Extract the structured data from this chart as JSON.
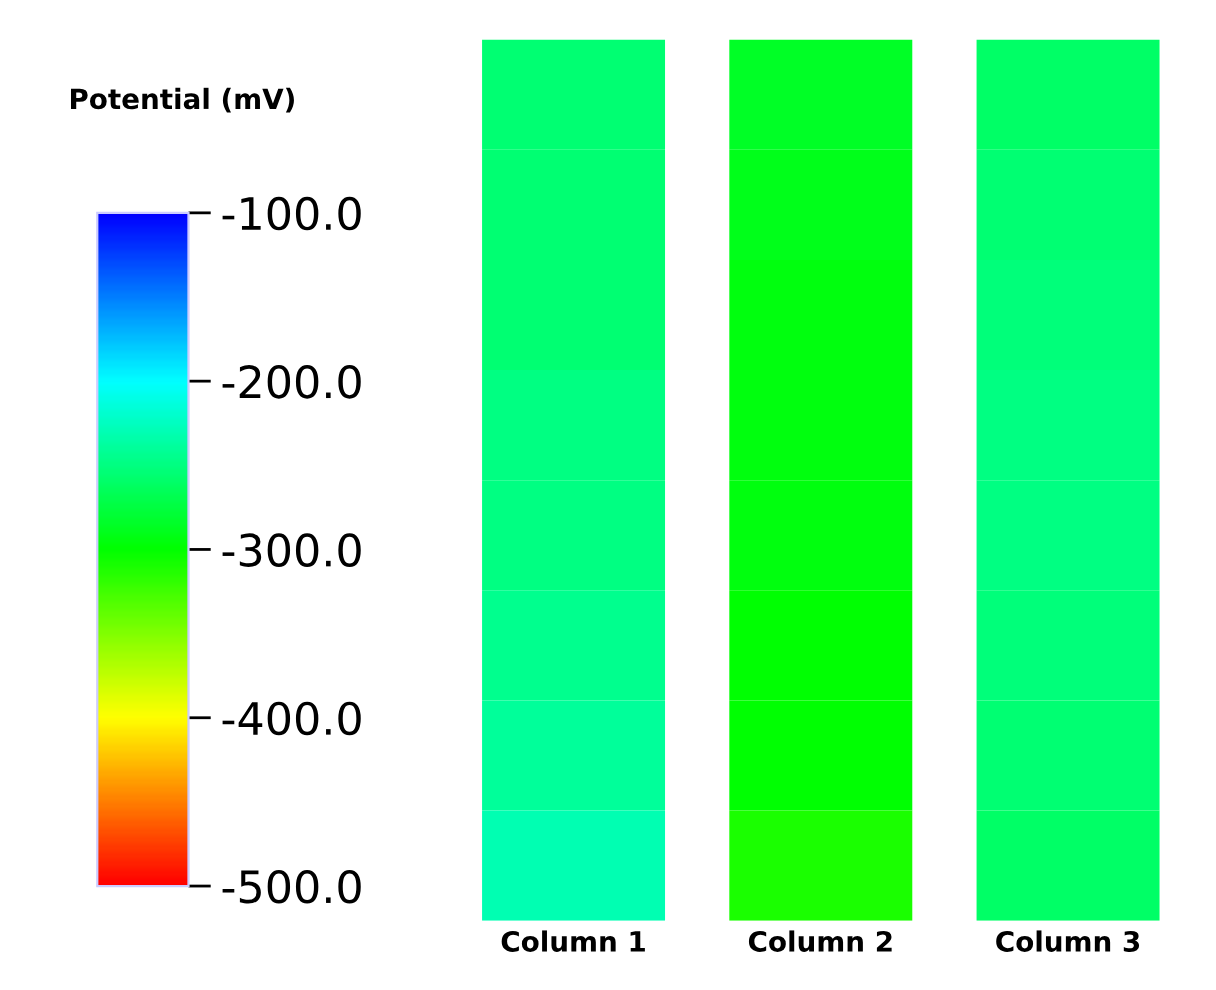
{
  "chart_data": {
    "type": "heatmap",
    "clabel": "Potential (mV)",
    "categories": [
      "Column 1",
      "Column 2",
      "Column 3"
    ],
    "y_categories": [
      null,
      null,
      null,
      null,
      null,
      null,
      null,
      null
    ],
    "cells": [
      [
        -255,
        -285,
        -260
      ],
      [
        -255,
        -290,
        -255
      ],
      [
        -255,
        -295,
        -252
      ],
      [
        -250,
        -295,
        -250
      ],
      [
        -250,
        -295,
        -250
      ],
      [
        -245,
        -300,
        -252
      ],
      [
        -240,
        -300,
        -255
      ],
      [
        -230,
        -310,
        -260
      ]
    ],
    "clim": [
      -500,
      -100
    ],
    "cticks": [
      {
        "value": -500,
        "label": "-500.0"
      },
      {
        "value": -400,
        "label": "-400.0"
      },
      {
        "value": -300,
        "label": "-300.0"
      },
      {
        "value": -200,
        "label": "-200.0"
      },
      {
        "value": -100,
        "label": "-100.0"
      }
    ]
  }
}
